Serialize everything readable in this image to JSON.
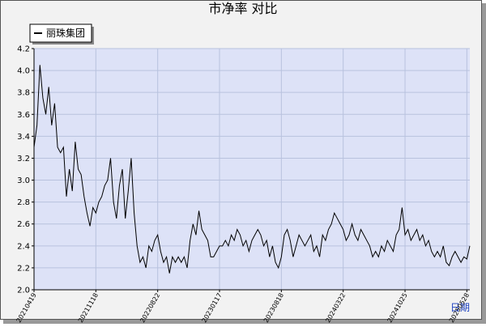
{
  "chart_data": {
    "type": "line",
    "title": "市净率 对比",
    "x_label": "日期",
    "categories": [
      "20210419",
      null,
      null,
      null,
      null,
      null,
      null,
      null,
      null,
      null,
      null,
      null,
      null,
      null,
      null,
      null,
      null,
      null,
      null,
      null,
      null,
      "20211118",
      null,
      null,
      null,
      null,
      null,
      null,
      null,
      null,
      null,
      null,
      null,
      null,
      null,
      null,
      null,
      null,
      null,
      null,
      null,
      null,
      "20220822",
      null,
      null,
      null,
      null,
      null,
      null,
      null,
      null,
      null,
      null,
      null,
      null,
      null,
      null,
      null,
      null,
      null,
      null,
      null,
      null,
      "20230117",
      null,
      null,
      null,
      null,
      null,
      null,
      null,
      null,
      null,
      null,
      null,
      null,
      null,
      null,
      null,
      null,
      null,
      null,
      null,
      null,
      "20230818",
      null,
      null,
      null,
      null,
      null,
      null,
      null,
      null,
      null,
      null,
      null,
      null,
      null,
      null,
      null,
      null,
      null,
      null,
      null,
      null,
      "20240322",
      null,
      null,
      null,
      null,
      null,
      null,
      null,
      null,
      null,
      null,
      null,
      null,
      null,
      null,
      null,
      null,
      null,
      null,
      null,
      null,
      "20241025",
      null,
      null,
      null,
      null,
      null,
      null,
      null,
      null,
      null,
      null,
      null,
      null,
      null,
      null,
      null,
      null,
      null,
      null,
      null,
      null,
      "20250528",
      null
    ],
    "series": [
      {
        "name": "丽珠集团",
        "color": "#000000",
        "values": [
          3.3,
          3.5,
          4.05,
          3.75,
          3.6,
          3.85,
          3.5,
          3.7,
          3.3,
          3.25,
          3.3,
          2.85,
          3.1,
          2.9,
          3.35,
          3.1,
          3.05,
          2.85,
          2.7,
          2.58,
          2.75,
          2.7,
          2.8,
          2.85,
          2.95,
          3.0,
          3.2,
          2.8,
          2.65,
          2.95,
          3.1,
          2.65,
          2.9,
          3.2,
          2.7,
          2.4,
          2.25,
          2.3,
          2.2,
          2.4,
          2.35,
          2.45,
          2.5,
          2.35,
          2.25,
          2.3,
          2.15,
          2.3,
          2.25,
          2.3,
          2.25,
          2.3,
          2.2,
          2.45,
          2.6,
          2.5,
          2.72,
          2.55,
          2.5,
          2.45,
          2.3,
          2.3,
          2.35,
          2.4,
          2.4,
          2.45,
          2.4,
          2.5,
          2.45,
          2.55,
          2.5,
          2.4,
          2.45,
          2.35,
          2.45,
          2.5,
          2.55,
          2.5,
          2.4,
          2.45,
          2.3,
          2.4,
          2.25,
          2.2,
          2.3,
          2.5,
          2.55,
          2.45,
          2.3,
          2.4,
          2.5,
          2.45,
          2.4,
          2.45,
          2.5,
          2.35,
          2.4,
          2.3,
          2.5,
          2.45,
          2.55,
          2.6,
          2.7,
          2.65,
          2.6,
          2.55,
          2.45,
          2.5,
          2.6,
          2.5,
          2.45,
          2.55,
          2.5,
          2.45,
          2.4,
          2.3,
          2.35,
          2.3,
          2.4,
          2.35,
          2.45,
          2.4,
          2.35,
          2.5,
          2.55,
          2.75,
          2.5,
          2.55,
          2.45,
          2.5,
          2.55,
          2.45,
          2.5,
          2.4,
          2.45,
          2.35,
          2.3,
          2.35,
          2.3,
          2.4,
          2.25,
          2.22,
          2.3,
          2.35,
          2.3,
          2.25,
          2.3,
          2.28,
          2.4
        ]
      }
    ],
    "ylim": [
      2.0,
      4.2
    ],
    "yticks": [
      {
        "value": 2.0,
        "label": "2.0"
      },
      2.2,
      2.4,
      2.6,
      2.8,
      {
        "value": 3.0,
        "label": "3.0"
      },
      3.2,
      3.4,
      3.6,
      3.8,
      {
        "value": 4.0,
        "label": "4.0"
      },
      4.2
    ],
    "grid": true
  }
}
